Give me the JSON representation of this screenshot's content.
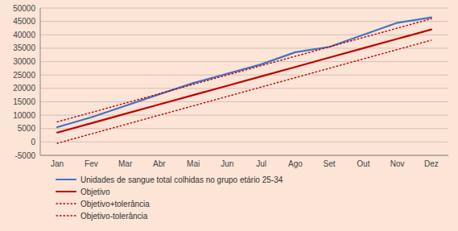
{
  "chart_data": {
    "type": "line",
    "categories": [
      "Jan",
      "Fev",
      "Mar",
      "Abr",
      "Mai",
      "Jun",
      "Jul",
      "Ago",
      "Set",
      "Out",
      "Nov",
      "Dez"
    ],
    "series": [
      {
        "name": "Unidades de sangue total colhidas no grupo etário 25-34",
        "color": "#4472c4",
        "line_style": "solid",
        "values": [
          5500,
          9200,
          13500,
          17800,
          22000,
          25500,
          29000,
          33500,
          35500,
          40000,
          44500,
          46500
        ]
      },
      {
        "name": "Objetivo",
        "color": "#c00000",
        "line_style": "solid",
        "values": [
          3500,
          7000,
          10500,
          14000,
          17500,
          21000,
          24500,
          28000,
          31500,
          35000,
          38500,
          42000
        ]
      },
      {
        "name": "Objetivo+tolerância",
        "color": "#c00000",
        "line_style": "dotted",
        "values": [
          7500,
          11000,
          14500,
          18000,
          21500,
          25000,
          28500,
          32000,
          35500,
          39000,
          42500,
          46000
        ]
      },
      {
        "name": "Objetivo-tolerância",
        "color": "#c00000",
        "line_style": "dotted",
        "values": [
          -500,
          3000,
          6500,
          10000,
          13500,
          17000,
          20500,
          24000,
          27500,
          31000,
          34500,
          38000
        ]
      }
    ],
    "ylim": [
      -5000,
      50000
    ],
    "yticks": [
      -5000,
      0,
      5000,
      10000,
      15000,
      20000,
      25000,
      30000,
      35000,
      40000,
      45000,
      50000
    ],
    "grid": true,
    "legend": "bottom"
  }
}
